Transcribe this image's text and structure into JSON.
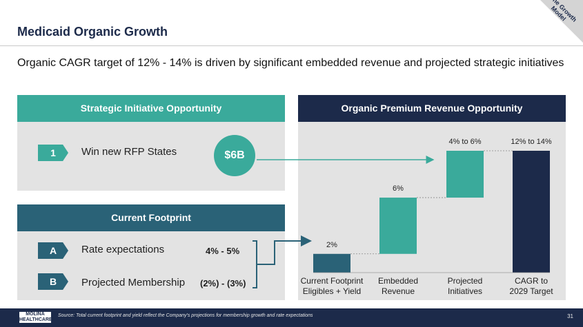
{
  "header": {
    "title": "Medicaid Organic Growth",
    "subtitle": "Organic CAGR target of 12% - 14% is driven by significant embedded revenue and projected strategic initiatives",
    "corner_tag": "The Growth Model"
  },
  "strategic": {
    "heading": "Strategic Initiative Opportunity",
    "items": [
      {
        "badge": "1",
        "label": "Win new RFP States"
      }
    ],
    "circle_value": "$6B"
  },
  "footprint": {
    "heading": "Current Footprint",
    "items": [
      {
        "badge": "A",
        "label": "Rate expectations",
        "value": "4% - 5%"
      },
      {
        "badge": "B",
        "label": "Projected Membership",
        "value": "(2%) - (3%)"
      }
    ]
  },
  "chart_data": {
    "type": "bar",
    "title": "Organic Premium Revenue Opportunity",
    "subtype": "waterfall",
    "categories": [
      "Current Footprint Eligibles + Yield",
      "Embedded Revenue",
      "Projected Initiatives",
      "CAGR to 2029 Target"
    ],
    "category_lines": [
      [
        "Current Footprint",
        "Eligibles + Yield"
      ],
      [
        "Embedded",
        "Revenue"
      ],
      [
        "Projected",
        "Initiatives"
      ],
      [
        "CAGR to",
        "2029 Target"
      ]
    ],
    "values": [
      2,
      6,
      5,
      13
    ],
    "labels": [
      "2%",
      "6%",
      "4% to 6%",
      "12% to 14%"
    ],
    "total_index": 3,
    "ylim": [
      0,
      13
    ],
    "grid": false
  },
  "footer": {
    "logo": "MOLINA HEALTHCARE",
    "source": "Source: Total current footprint and yield reflect the Company's projections for membership growth and rate expectations",
    "page": "31"
  },
  "colors": {
    "navy": "#1c2a4a",
    "teal": "#3aaa9b",
    "dark_teal": "#2a6277",
    "panel_gray": "#e3e3e3"
  }
}
